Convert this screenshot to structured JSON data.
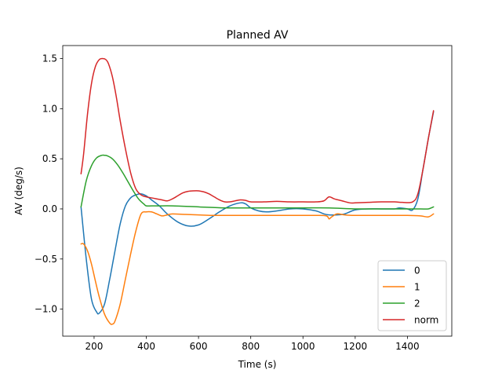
{
  "chart_data": {
    "type": "line",
    "title": "Planned AV",
    "xlabel": "Time (s)",
    "ylabel": "AV (deg/s)",
    "xlim": [
      80,
      1570
    ],
    "ylim": [
      -1.27,
      1.63
    ],
    "xticks": [
      200,
      400,
      600,
      800,
      1000,
      1200,
      1400
    ],
    "xtick_labels": [
      "200",
      "400",
      "600",
      "800",
      "1000",
      "1200",
      "1400"
    ],
    "yticks": [
      -1.0,
      -0.5,
      0.0,
      0.5,
      1.0,
      1.5
    ],
    "ytick_labels": [
      "−1.0",
      "−0.5",
      "0.0",
      "0.5",
      "1.0",
      "1.5"
    ],
    "grid": false,
    "legend_position": "lower-right",
    "colors": {
      "0": "#1f77b4",
      "1": "#ff7f0e",
      "2": "#2ca02c",
      "norm": "#d62728"
    },
    "series": [
      {
        "name": "0",
        "x": [
          150,
          170,
          190,
          210,
          220,
          240,
          260,
          280,
          300,
          320,
          340,
          360,
          380,
          400,
          420,
          450,
          480,
          520,
          560,
          600,
          640,
          680,
          720,
          760,
          780,
          800,
          830,
          860,
          900,
          950,
          1000,
          1050,
          1080,
          1100,
          1130,
          1160,
          1200,
          1250,
          1300,
          1350,
          1370,
          1400,
          1420,
          1440,
          1460,
          1480,
          1500
        ],
        "y": [
          0.02,
          -0.5,
          -0.9,
          -1.03,
          -1.04,
          -0.95,
          -0.7,
          -0.42,
          -0.15,
          0.03,
          0.11,
          0.14,
          0.15,
          0.13,
          0.09,
          0.03,
          -0.05,
          -0.13,
          -0.17,
          -0.16,
          -0.1,
          -0.03,
          0.03,
          0.06,
          0.05,
          0.01,
          -0.02,
          -0.03,
          -0.02,
          0.0,
          0.0,
          -0.02,
          -0.05,
          -0.06,
          -0.06,
          -0.05,
          -0.01,
          0.0,
          0.0,
          0.0,
          0.01,
          0.0,
          -0.01,
          0.1,
          0.4,
          0.7,
          0.97
        ]
      },
      {
        "name": "1",
        "x": [
          150,
          160,
          175,
          190,
          205,
          220,
          240,
          260,
          270,
          280,
          300,
          320,
          340,
          360,
          380,
          400,
          420,
          440,
          460,
          480,
          500,
          550,
          600,
          650,
          700,
          800,
          900,
          1000,
          1050,
          1090,
          1100,
          1110,
          1130,
          1160,
          1200,
          1300,
          1400,
          1450,
          1480,
          1500
        ],
        "y": [
          -0.35,
          -0.35,
          -0.42,
          -0.55,
          -0.72,
          -0.88,
          -1.05,
          -1.14,
          -1.15,
          -1.12,
          -0.95,
          -0.7,
          -0.45,
          -0.22,
          -0.05,
          -0.03,
          -0.03,
          -0.05,
          -0.07,
          -0.06,
          -0.05,
          -0.055,
          -0.06,
          -0.065,
          -0.065,
          -0.065,
          -0.065,
          -0.065,
          -0.065,
          -0.07,
          -0.1,
          -0.08,
          -0.05,
          -0.06,
          -0.065,
          -0.065,
          -0.065,
          -0.07,
          -0.08,
          -0.05
        ]
      },
      {
        "name": "2",
        "x": [
          150,
          170,
          190,
          210,
          230,
          240,
          250,
          270,
          290,
          310,
          330,
          350,
          370,
          390,
          400,
          420,
          450,
          500,
          600,
          700,
          800,
          900,
          1000,
          1100,
          1200,
          1300,
          1400,
          1450,
          1480,
          1500
        ],
        "y": [
          0.02,
          0.28,
          0.43,
          0.51,
          0.535,
          0.535,
          0.53,
          0.5,
          0.44,
          0.36,
          0.27,
          0.18,
          0.1,
          0.05,
          0.03,
          0.03,
          0.03,
          0.03,
          0.02,
          0.01,
          0.01,
          0.01,
          0.01,
          0.01,
          0.0,
          0.0,
          0.0,
          0.0,
          0.0,
          0.02
        ]
      },
      {
        "name": "norm",
        "x": [
          150,
          160,
          175,
          190,
          205,
          220,
          235,
          245,
          255,
          270,
          285,
          300,
          320,
          340,
          360,
          380,
          400,
          420,
          440,
          460,
          480,
          500,
          520,
          540,
          560,
          580,
          600,
          620,
          640,
          660,
          680,
          700,
          720,
          740,
          760,
          780,
          800,
          850,
          900,
          950,
          1000,
          1050,
          1080,
          1100,
          1120,
          1150,
          1180,
          1200,
          1250,
          1300,
          1350,
          1380,
          1420,
          1440,
          1460,
          1480,
          1500
        ],
        "y": [
          0.35,
          0.55,
          0.95,
          1.25,
          1.42,
          1.49,
          1.5,
          1.49,
          1.45,
          1.32,
          1.12,
          0.88,
          0.6,
          0.36,
          0.2,
          0.14,
          0.12,
          0.11,
          0.1,
          0.09,
          0.08,
          0.1,
          0.13,
          0.16,
          0.175,
          0.18,
          0.18,
          0.17,
          0.15,
          0.12,
          0.09,
          0.07,
          0.07,
          0.08,
          0.09,
          0.085,
          0.07,
          0.07,
          0.075,
          0.07,
          0.07,
          0.07,
          0.08,
          0.12,
          0.1,
          0.08,
          0.06,
          0.06,
          0.065,
          0.07,
          0.07,
          0.065,
          0.07,
          0.15,
          0.4,
          0.7,
          0.98
        ]
      }
    ]
  }
}
